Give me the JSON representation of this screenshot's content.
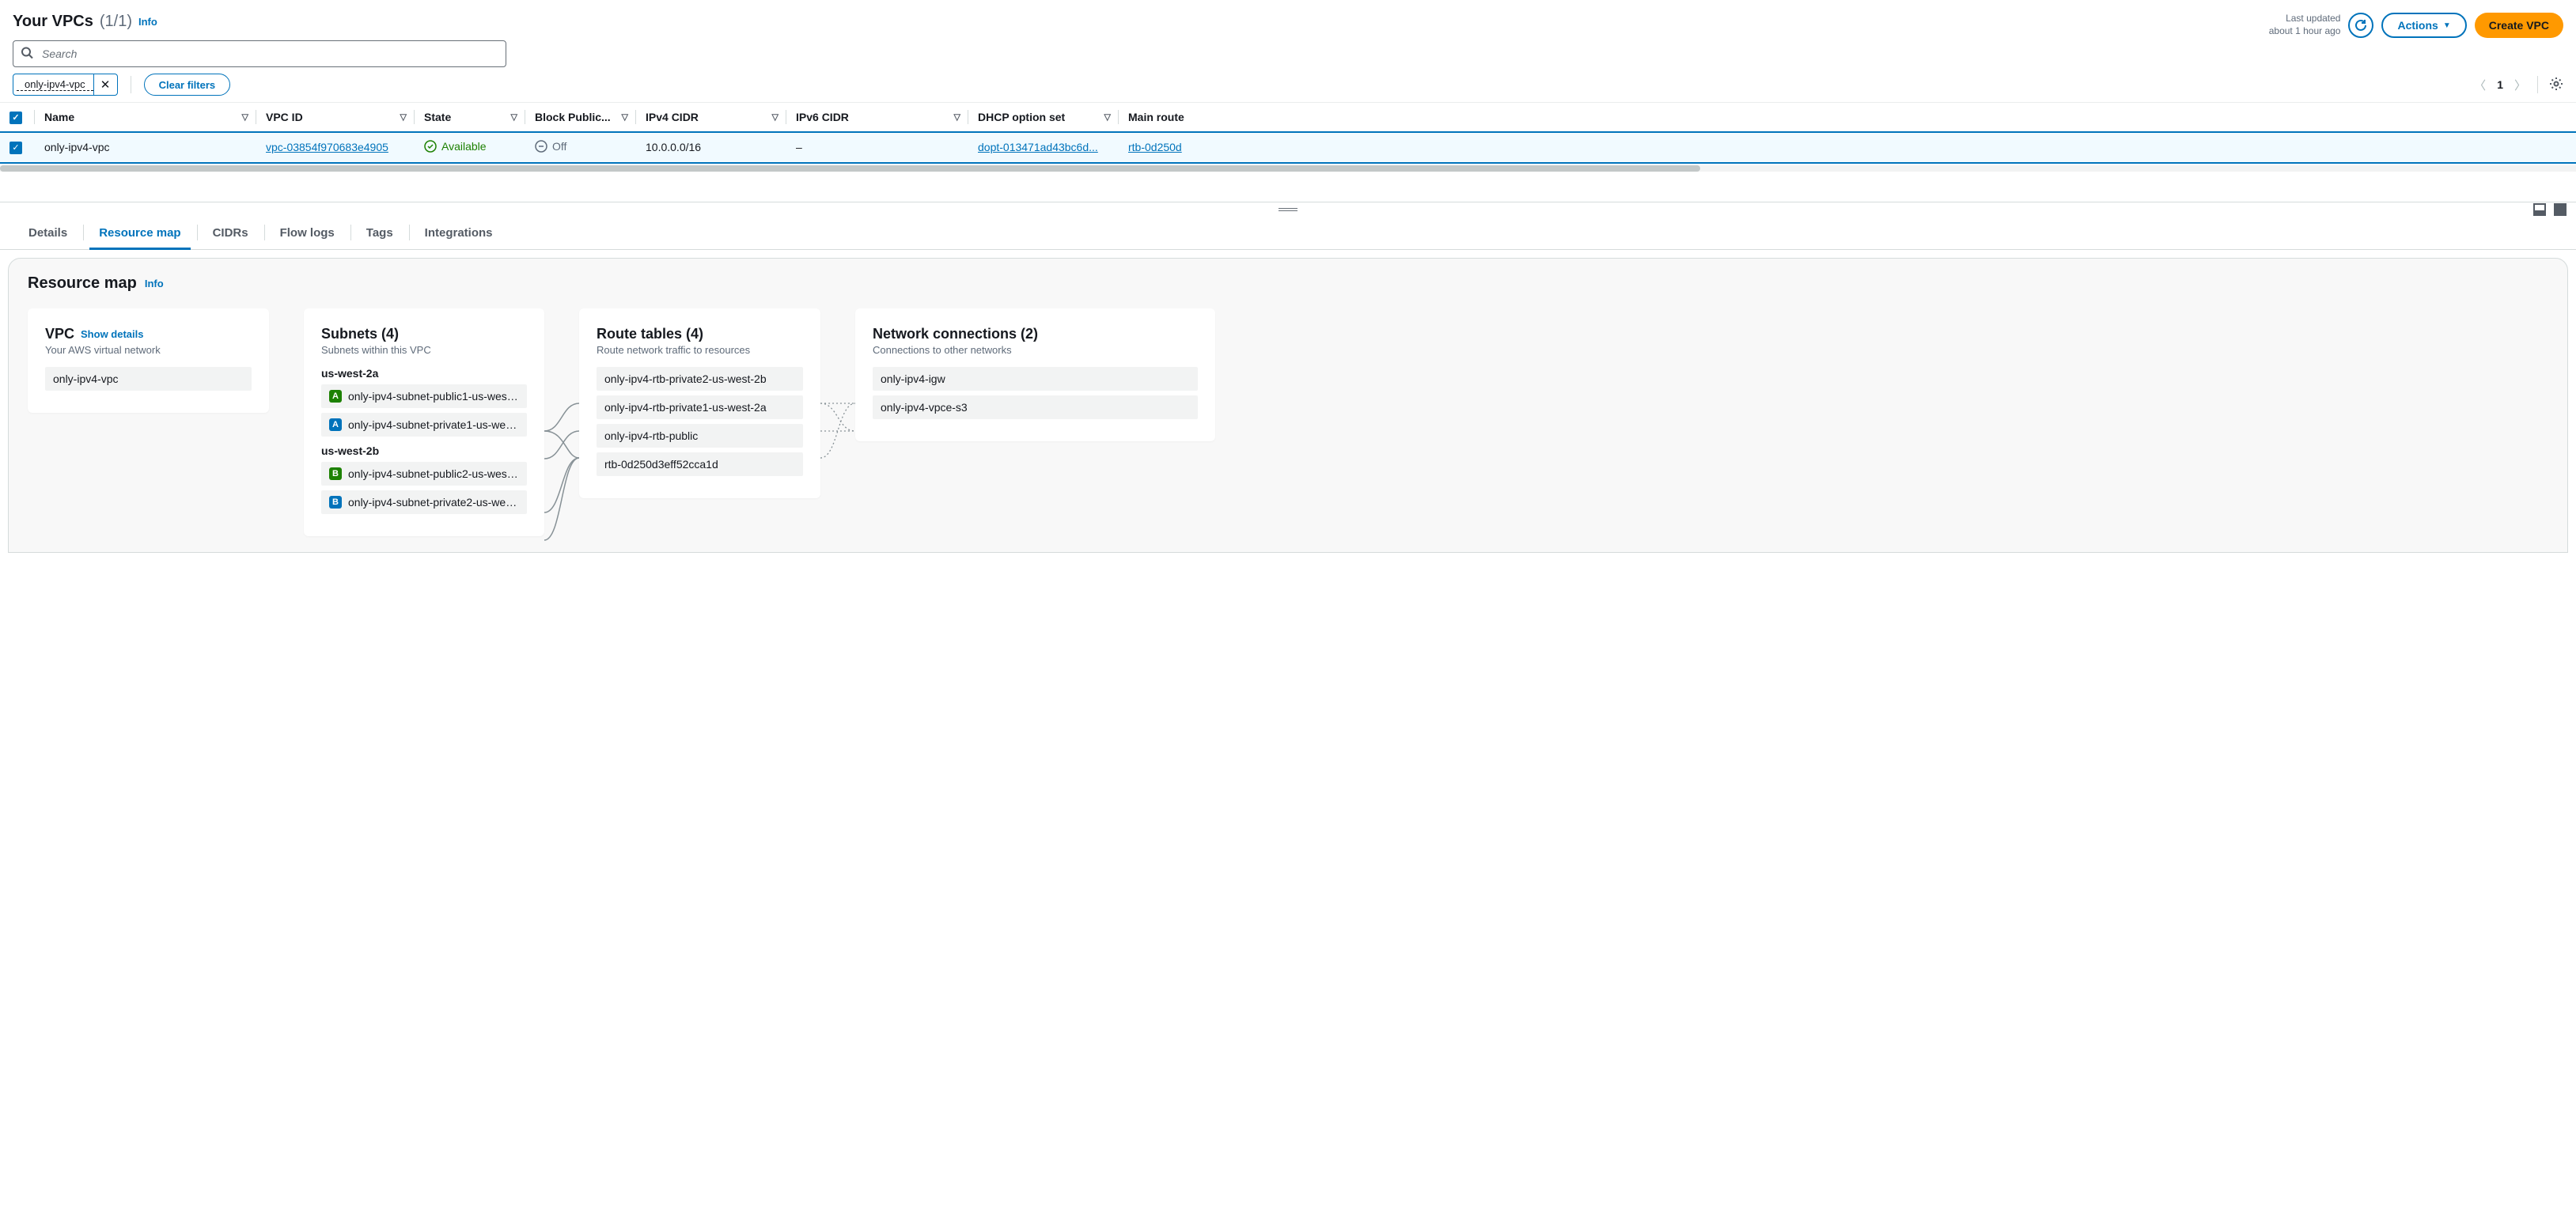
{
  "header": {
    "title": "Your VPCs",
    "count": "(1/1)",
    "info": "Info",
    "lastUpdated1": "Last updated",
    "lastUpdated2": "about 1 hour ago",
    "actions": "Actions",
    "createVpc": "Create VPC"
  },
  "search": {
    "placeholder": "Search"
  },
  "filters": {
    "chip": "only-ipv4-vpc",
    "clear": "Clear filters",
    "page": "1"
  },
  "table": {
    "columns": {
      "name": "Name",
      "vpcId": "VPC ID",
      "state": "State",
      "blockPublic": "Block Public...",
      "ipv4": "IPv4 CIDR",
      "ipv6": "IPv6 CIDR",
      "dhcp": "DHCP option set",
      "mainRoute": "Main route"
    },
    "row": {
      "name": "only-ipv4-vpc",
      "vpcId": "vpc-03854f970683e4905",
      "state": "Available",
      "blockPublic": "Off",
      "ipv4": "10.0.0.0/16",
      "ipv6": "–",
      "dhcp": "dopt-013471ad43bc6d...",
      "mainRoute": "rtb-0d250d"
    }
  },
  "tabs": {
    "details": "Details",
    "resourceMap": "Resource map",
    "cidrs": "CIDRs",
    "flowLogs": "Flow logs",
    "tags": "Tags",
    "integrations": "Integrations"
  },
  "resourceMap": {
    "title": "Resource map",
    "info": "Info",
    "vpc": {
      "title": "VPC",
      "showDetails": "Show details",
      "subtitle": "Your AWS virtual network",
      "item": "only-ipv4-vpc"
    },
    "subnets": {
      "title": "Subnets (4)",
      "subtitle": "Subnets within this VPC",
      "az1": "us-west-2a",
      "az1_items": [
        {
          "badge": "A",
          "badgeClass": "az-green",
          "label": "only-ipv4-subnet-public1-us-west..."
        },
        {
          "badge": "A",
          "badgeClass": "az-blue",
          "label": "only-ipv4-subnet-private1-us-wes..."
        }
      ],
      "az2": "us-west-2b",
      "az2_items": [
        {
          "badge": "B",
          "badgeClass": "az-green",
          "label": "only-ipv4-subnet-public2-us-west..."
        },
        {
          "badge": "B",
          "badgeClass": "az-blue",
          "label": "only-ipv4-subnet-private2-us-wes..."
        }
      ]
    },
    "routeTables": {
      "title": "Route tables (4)",
      "subtitle": "Route network traffic to resources",
      "items": [
        "only-ipv4-rtb-private2-us-west-2b",
        "only-ipv4-rtb-private1-us-west-2a",
        "only-ipv4-rtb-public",
        "rtb-0d250d3eff52cca1d"
      ]
    },
    "connections": {
      "title": "Network connections (2)",
      "subtitle": "Connections to other networks",
      "items": [
        "only-ipv4-igw",
        "only-ipv4-vpce-s3"
      ]
    }
  },
  "colors": {
    "link": "#0073bb",
    "primary": "#ff9900",
    "success": "#1d8102",
    "muted": "#5f6b7a"
  }
}
